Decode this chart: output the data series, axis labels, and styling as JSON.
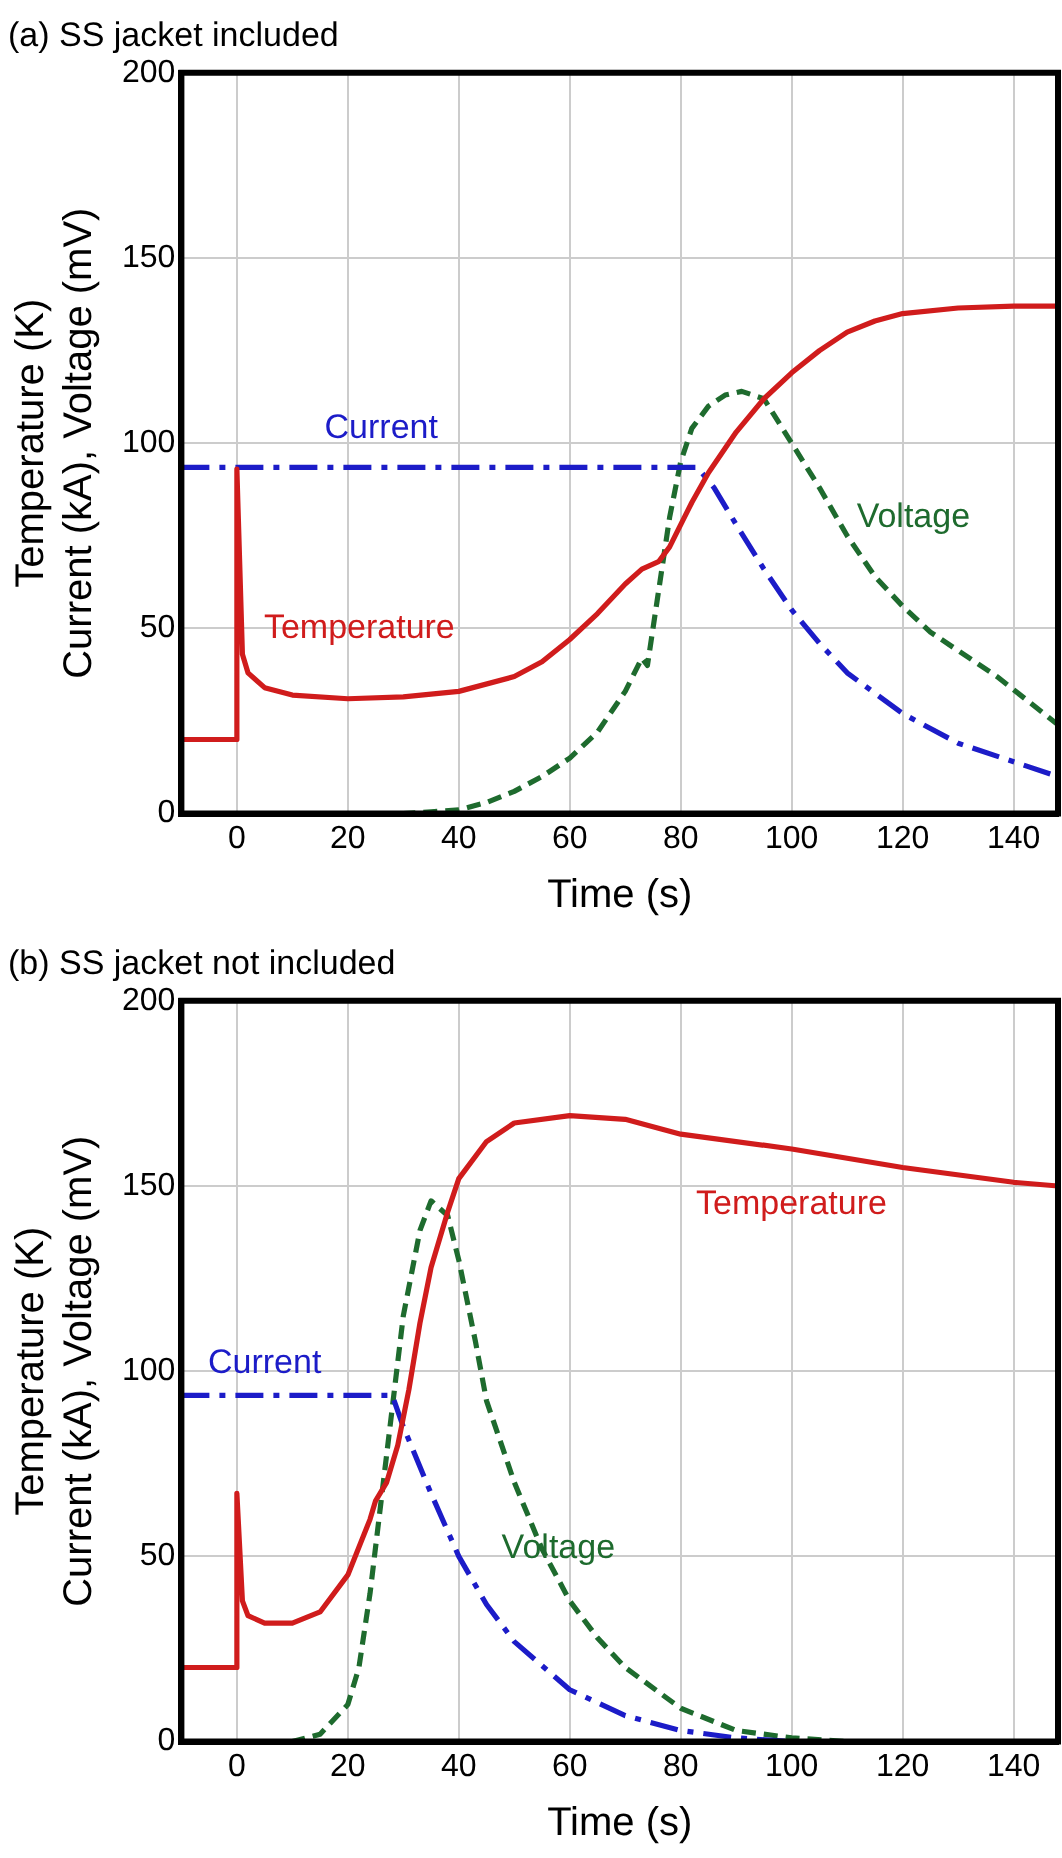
{
  "chart_data": [
    {
      "type": "line",
      "title": "(a) SS jacket included",
      "xlabel": "Time (s)",
      "ylabel": "Temperature (K)\nCurrent (kA), Voltage (mV)",
      "xlim": [
        -10,
        148
      ],
      "xticks": [
        0,
        20,
        40,
        60,
        80,
        100,
        120,
        140
      ],
      "ylim": [
        0,
        200
      ],
      "yticks": [
        0,
        50,
        100,
        150,
        200
      ],
      "grid": true,
      "legend": false,
      "series": [
        {
          "name": "Temperature",
          "color": "#d01c1c",
          "line_style": "solid",
          "x": [
            -10,
            0,
            0,
            1,
            2,
            5,
            10,
            20,
            30,
            40,
            50,
            55,
            60,
            65,
            70,
            73,
            76,
            78,
            80,
            82,
            85,
            90,
            95,
            100,
            105,
            110,
            115,
            120,
            130,
            140,
            148
          ],
          "values": [
            20,
            20,
            93,
            43,
            38,
            34,
            32,
            31,
            31.5,
            33,
            37,
            41,
            47,
            54,
            62,
            66,
            68,
            72,
            78,
            84,
            92,
            103,
            112,
            119,
            125,
            130,
            133,
            135,
            136.5,
            137,
            137
          ]
        },
        {
          "name": "Current",
          "color": "#1c1cc8",
          "line_style": "dashdot",
          "x": [
            -10,
            83,
            86,
            90,
            95,
            100,
            105,
            110,
            120,
            130,
            140,
            148
          ],
          "values": [
            93.5,
            93.5,
            88,
            78,
            66,
            55,
            46,
            38,
            27,
            19,
            14,
            10
          ]
        },
        {
          "name": "Voltage",
          "color": "#1e6b2e",
          "line_style": "dashed",
          "x": [
            -10,
            30,
            35,
            40,
            45,
            50,
            55,
            60,
            65,
            70,
            73,
            74,
            76,
            78,
            80,
            82,
            85,
            88,
            91,
            95,
            100,
            105,
            110,
            115,
            120,
            125,
            130,
            137,
            148
          ],
          "values": [
            0,
            0,
            0.5,
            1,
            3,
            6,
            10,
            15,
            22,
            33,
            42,
            40,
            60,
            80,
            95,
            104,
            110,
            113,
            114,
            112,
            100,
            88,
            75,
            64,
            56,
            49,
            44,
            37,
            24
          ]
        }
      ]
    },
    {
      "type": "line",
      "title": "(b) SS jacket not included",
      "xlabel": "Time (s)",
      "ylabel": "Temperature (K)\nCurrent (kA), Voltage (mV)",
      "xlim": [
        -10,
        148
      ],
      "xticks": [
        0,
        20,
        40,
        60,
        80,
        100,
        120,
        140
      ],
      "ylim": [
        0,
        200
      ],
      "yticks": [
        0,
        50,
        100,
        150,
        200
      ],
      "grid": true,
      "legend": false,
      "series": [
        {
          "name": "Temperature",
          "color": "#d01c1c",
          "line_style": "solid",
          "x": [
            -10,
            0,
            0,
            1,
            2,
            5,
            10,
            15,
            20,
            24,
            25,
            27,
            29,
            31,
            33,
            35,
            38,
            40,
            45,
            50,
            60,
            70,
            80,
            100,
            120,
            140,
            148
          ],
          "values": [
            20,
            20,
            67,
            38,
            34,
            32,
            32,
            35,
            45,
            60,
            65,
            70,
            80,
            95,
            113,
            128,
            143,
            152,
            162,
            167,
            169,
            168,
            164,
            160,
            155,
            151,
            150
          ]
        },
        {
          "name": "Current",
          "color": "#1c1cc8",
          "line_style": "dashdot",
          "x": [
            -10,
            28,
            30,
            35,
            40,
            45,
            50,
            60,
            70,
            80,
            90,
            100
          ],
          "values": [
            93.5,
            93.5,
            85,
            67,
            50,
            37,
            27,
            14,
            7,
            3,
            1,
            0
          ]
        },
        {
          "name": "Voltage",
          "color": "#1e6b2e",
          "line_style": "dashed",
          "x": [
            -10,
            10,
            15,
            20,
            22,
            24,
            26,
            28,
            30,
            33,
            35,
            38,
            40,
            43,
            45,
            50,
            55,
            60,
            65,
            70,
            80,
            90,
            100,
            110
          ],
          "values": [
            0,
            0,
            2,
            10,
            20,
            40,
            65,
            90,
            115,
            138,
            146,
            142,
            130,
            108,
            92,
            70,
            52,
            38,
            28,
            20,
            9,
            3,
            1,
            0
          ]
        }
      ]
    }
  ]
}
